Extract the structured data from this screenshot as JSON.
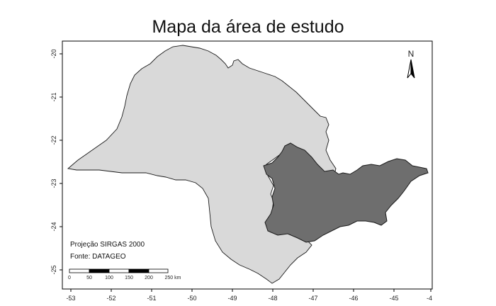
{
  "map": {
    "title": "Mapa da área de estudo",
    "north_label": "N",
    "projection_note": "Projeção SIRGAS 2000",
    "source_note": "Fonte: DATAGEO",
    "scale_bar": {
      "labels": [
        "0",
        "50",
        "100",
        "150",
        "200",
        "250 km"
      ]
    },
    "axes": {
      "x_ticks": [
        "-53",
        "-52",
        "-51",
        "-50",
        "-49",
        "-48",
        "-47",
        "-46",
        "-45",
        "-4"
      ],
      "y_ticks": [
        "-20",
        "-21",
        "-22",
        "-23",
        "-24",
        "-25"
      ]
    },
    "colors": {
      "state_fill": "#d9d9d9",
      "study_area_fill": "#6e6e6e",
      "outline": "#1a1a1a",
      "frame": "#000000"
    }
  }
}
